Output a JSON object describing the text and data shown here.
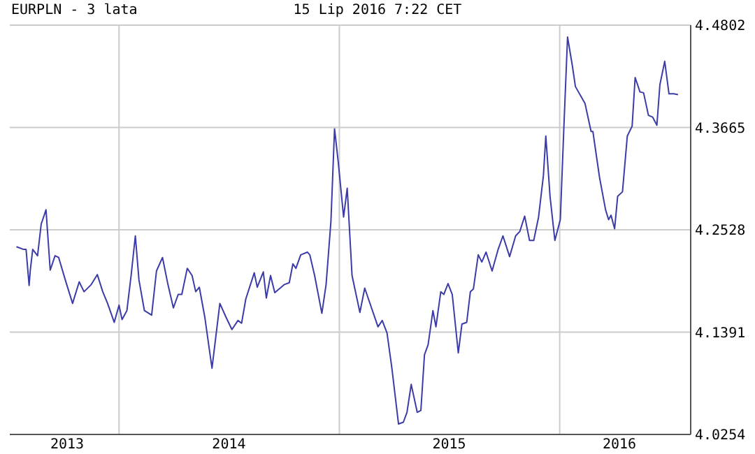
{
  "chart_data": {
    "type": "line",
    "title": "EURPLN - 3 lata",
    "subtitle": "15 Lip 2016 7:22 CET",
    "x": [
      "2013-07-15",
      "2013-07-27",
      "2013-07-31",
      "2013-08-05",
      "2013-08-07",
      "2013-08-11",
      "2013-08-19",
      "2013-08-25",
      "2013-09-02",
      "2013-09-09",
      "2013-09-17",
      "2013-09-23",
      "2013-10-04",
      "2013-10-16",
      "2013-10-27",
      "2013-11-04",
      "2013-11-16",
      "2013-11-26",
      "2013-12-05",
      "2013-12-13",
      "2013-12-24",
      "2014-01-01",
      "2014-01-06",
      "2014-01-14",
      "2014-01-21",
      "2014-01-28",
      "2014-02-03",
      "2014-02-12",
      "2014-02-24",
      "2014-03-04",
      "2014-03-14",
      "2014-03-23",
      "2014-04-01",
      "2014-04-09",
      "2014-04-15",
      "2014-04-24",
      "2014-05-02",
      "2014-05-08",
      "2014-05-14",
      "2014-05-23",
      "2014-06-04",
      "2014-06-17",
      "2014-06-27",
      "2014-07-07",
      "2014-07-17",
      "2014-07-23",
      "2014-07-30",
      "2014-08-13",
      "2014-08-18",
      "2014-08-28",
      "2014-09-02",
      "2014-09-09",
      "2014-09-16",
      "2014-10-02",
      "2014-10-10",
      "2014-10-16",
      "2014-10-21",
      "2014-10-29",
      "2014-11-09",
      "2014-11-13",
      "2014-11-21",
      "2014-12-03",
      "2014-12-10",
      "2014-12-18",
      "2014-12-24",
      "2014-12-30",
      "2015-01-08",
      "2015-01-14",
      "2015-01-22",
      "2015-02-04",
      "2015-02-12",
      "2015-03-06",
      "2015-03-13",
      "2015-03-21",
      "2015-03-29",
      "2015-04-09",
      "2015-04-17",
      "2015-04-23",
      "2015-04-30",
      "2015-05-10",
      "2015-05-16",
      "2015-05-22",
      "2015-05-28",
      "2015-06-05",
      "2015-06-10",
      "2015-06-18",
      "2015-06-23",
      "2015-06-30",
      "2015-07-07",
      "2015-07-17",
      "2015-07-23",
      "2015-07-31",
      "2015-08-06",
      "2015-08-11",
      "2015-08-19",
      "2015-08-25",
      "2015-09-01",
      "2015-09-11",
      "2015-09-21",
      "2015-09-29",
      "2015-10-10",
      "2015-10-20",
      "2015-10-27",
      "2015-11-04",
      "2015-11-12",
      "2015-11-19",
      "2015-11-27",
      "2015-12-05",
      "2015-12-09",
      "2015-12-16",
      "2015-12-24",
      "2016-01-02",
      "2016-01-08",
      "2016-01-14",
      "2016-01-22",
      "2016-01-27",
      "2016-02-12",
      "2016-02-22",
      "2016-02-25",
      "2016-03-07",
      "2016-03-17",
      "2016-03-22",
      "2016-03-26",
      "2016-04-01",
      "2016-04-06",
      "2016-04-14",
      "2016-04-22",
      "2016-04-30",
      "2016-05-05",
      "2016-05-13",
      "2016-05-19",
      "2016-05-27",
      "2016-06-03",
      "2016-06-10",
      "2016-06-15",
      "2016-06-23",
      "2016-06-30",
      "2016-07-08",
      "2016-07-15"
    ],
    "series": [
      {
        "color": "#3c3ca8",
        "values": [
          4.234,
          4.231,
          4.231,
          4.191,
          4.208,
          4.231,
          4.224,
          4.259,
          4.275,
          4.208,
          4.224,
          4.222,
          4.197,
          4.171,
          4.195,
          4.184,
          4.192,
          4.203,
          4.184,
          4.171,
          4.15,
          4.169,
          4.153,
          4.163,
          4.202,
          4.246,
          4.197,
          4.163,
          4.158,
          4.207,
          4.222,
          4.192,
          4.166,
          4.181,
          4.181,
          4.21,
          4.202,
          4.184,
          4.189,
          4.156,
          4.099,
          4.171,
          4.156,
          4.142,
          4.152,
          4.149,
          4.176,
          4.205,
          4.189,
          4.206,
          4.177,
          4.202,
          4.183,
          4.192,
          4.194,
          4.215,
          4.21,
          4.225,
          4.228,
          4.225,
          4.202,
          4.16,
          4.192,
          4.262,
          4.365,
          4.329,
          4.267,
          4.299,
          4.202,
          4.161,
          4.188,
          4.145,
          4.152,
          4.138,
          4.099,
          4.037,
          4.039,
          4.05,
          4.081,
          4.05,
          4.052,
          4.114,
          4.125,
          4.163,
          4.145,
          4.184,
          4.181,
          4.193,
          4.181,
          4.116,
          4.148,
          4.15,
          4.184,
          4.187,
          4.225,
          4.217,
          4.228,
          4.207,
          4.231,
          4.246,
          4.223,
          4.246,
          4.251,
          4.268,
          4.241,
          4.241,
          4.267,
          4.313,
          4.357,
          4.29,
          4.241,
          4.264,
          4.368,
          4.467,
          4.435,
          4.412,
          4.393,
          4.362,
          4.362,
          4.311,
          4.275,
          4.264,
          4.269,
          4.254,
          4.29,
          4.295,
          4.357,
          4.368,
          4.422,
          4.406,
          4.405,
          4.38,
          4.378,
          4.369,
          4.414,
          4.44,
          4.404,
          4.404,
          4.403
        ]
      }
    ],
    "xlim": [
      "2013-07-04",
      "2016-08-05"
    ],
    "xticks": [
      {
        "value": "2013-10-07",
        "label": "2013"
      },
      {
        "value": "2014-01-01",
        "label": null
      },
      {
        "value": "2014-07-02",
        "label": "2014"
      },
      {
        "value": "2015-01-01",
        "label": null
      },
      {
        "value": "2015-07-02",
        "label": "2015"
      },
      {
        "value": "2016-01-01",
        "label": null
      },
      {
        "value": "2016-04-09",
        "label": "2016"
      }
    ],
    "ylim": [
      4.0254,
      4.4802
    ],
    "yticks": [
      4.0254,
      4.1391,
      4.2528,
      4.3665,
      4.4802
    ],
    "grid": true,
    "legend": false,
    "marker": "none",
    "line_style": "solid"
  }
}
